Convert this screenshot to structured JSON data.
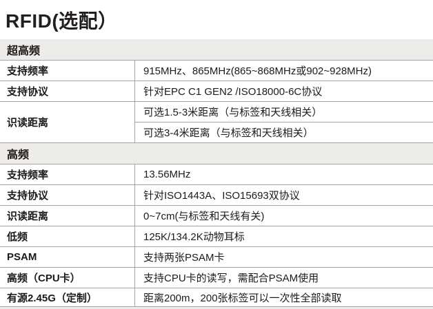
{
  "title": "RFID(选配）",
  "colors": {
    "text": "#231f20",
    "section_band_bg": "#edece9",
    "row_bg": "#ffffff",
    "divider": "#a5a3a1"
  },
  "sections": [
    {
      "header": "超高频",
      "rows": [
        {
          "label": "支持频率",
          "values": [
            "915MHz、865MHz(865~868MHz或902~928MHz)"
          ]
        },
        {
          "label": "支持协议",
          "values": [
            "针对EPC C1 GEN2 /ISO18000-6C协议"
          ]
        },
        {
          "label": "识读距离",
          "values": [
            "可选1.5-3米距离（与标签和天线相关）",
            "可选3-4米距离（与标签和天线相关）"
          ]
        }
      ]
    },
    {
      "header": "高频",
      "rows": [
        {
          "label": "支持频率",
          "values": [
            "13.56MHz"
          ]
        },
        {
          "label": "支持协议",
          "values": [
            "针对ISO1443A、ISO15693双协议"
          ]
        },
        {
          "label": "识读距离",
          "values": [
            "0~7cm(与标签和天线有关)"
          ]
        },
        {
          "label": "低频",
          "values": [
            "125K/134.2K动物耳标"
          ]
        },
        {
          "label": "PSAM",
          "values": [
            "支持两张PSAM卡"
          ]
        },
        {
          "label": "高频（CPU卡）",
          "values": [
            "支持CPU卡的读写，需配合PSAM使用"
          ]
        },
        {
          "label": "有源2.45G（定制）",
          "values": [
            "距离200m，200张标签可以一次性全部读取"
          ]
        }
      ]
    }
  ]
}
